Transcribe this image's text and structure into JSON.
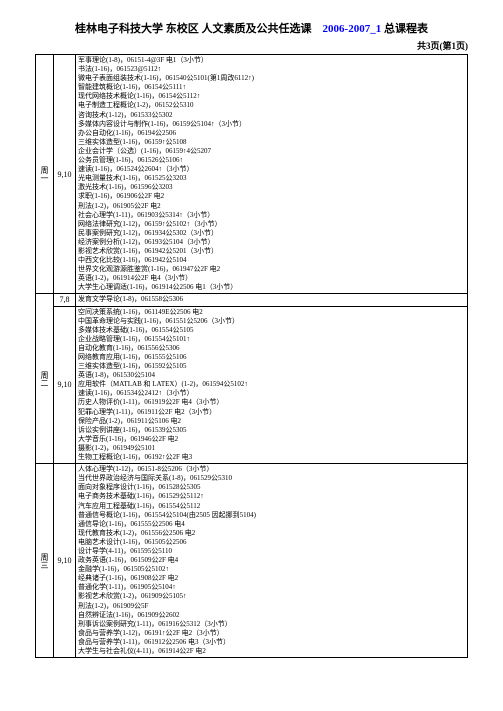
{
  "header": {
    "title_prefix": "桂林电子科技大学 东校区 人文素质及公共任选课　",
    "title_year": "2006-2007_1",
    "title_suffix": " 总课程表",
    "subtitle": "共3页(第1页)"
  },
  "colors": {
    "year_color": "#0000ff",
    "text_color": "#000000",
    "bg_color": "#ffffff"
  },
  "schedule": [
    {
      "day": "周一",
      "slots": [
        {
          "time": "9,10",
          "courses": [
            "军事理论(1-8)，06151-4@3F 电1（3小节）",
            "书法(1-16)，061523@5112↑",
            "微电子表面组装技术(1-16)，061540公5101(第1周改6112↑)",
            "智能建筑概论(1-16)，06154公5111↑",
            "现代网络技术概论(1-16)，06154公5112↑",
            "电子制造工程概论(1-2)，06152公5310",
            "咨询技术(1-12)，061533公5302",
            "多媒体内容设计与制作(1-16)，06159公5104↑（3小节）",
            "办公自动化(1-16)，06194公2506",
            "三维实体造型(1-16)，06159↑公5108",
            "企业会计学（公选）(1-16)，06159↑4公5207",
            "公务员管理(1-16)，061526公5106↑",
            "速读(1-16)，061524公2604↑（3小节）",
            "光电测量技术(1-16)，061525公3203",
            "激光技术(1-16)，061596公3203",
            "求职(1-16)，061906公2F 电2",
            "刑法(1-2)，061905公2F 电2",
            "社会心理学(1-11)，061903公5314↑（3小节）",
            "网络法律研究(1-12)，06159↑公5102↑（3小节）",
            "民事案例研究(1-12)，061934公5302（3小节）",
            "经济案例分析(1-12)，06193公5104（3小节）",
            "影视艺术欣赏(1-16)，061942公5201（3小节）",
            "中西文化比较(1-16)，061942公5104",
            "世界文化观游源胜鉴赏(1-16)，061947公2F 电2",
            "英语(1-2)，061914公2F 电4（3小节）",
            "大学生心理调适(1-16)，061914公2506 电1（3小节）"
          ]
        }
      ]
    },
    {
      "day": "周二",
      "slots": [
        {
          "time": "7,8",
          "courses": [
            "发育文学导论(1-8)，061558公5306"
          ]
        },
        {
          "time": "9,10",
          "courses": [
            "空间决策系统(1-16)，061149E公2506 电2",
            "中国革命理论与实践(1-16)，061551公5206（3小节）",
            "多媒体技术基础(1-16)，061554公5105",
            "企业战略管理(1-16)，061554公5101↑",
            "自动化教育(1-16)，061556公5306",
            "网络教育应用(1-16)，061555公5106",
            "三维实体造型(1-16)，061592公5105",
            "英语(1-8)，061530公5104",
            "应用软件（MATLAB 和 LATEX）(1-2)，061594公5102↑",
            "速读(1-16)，061534公2412↑（3小节）",
            "历史人物评价(1-11)，061919公2F 电4（3小节）",
            "犯罪心理学(1-11)，061911公2F 电2（3小节）",
            "保险产品(1-2)，061911公5106 电2",
            "诉讼实例讲座(1-16)，061539公5305",
            "大学音乐(1-16)，061946公2F 电2",
            "摄影(1-2)，061949公5101",
            "生物工程概论(1-16)，06192↑公2F 电3"
          ]
        }
      ]
    },
    {
      "day": "周三",
      "slots": [
        {
          "time": "9,10",
          "courses": [
            "人体心理学(1-12)，06151-8公5206（3小节）",
            "当代世界政治经济与国际关系(1-8)，061529公5310",
            "面向对象程序设计(1-16)，061528公5305",
            "电子商务技术基础(1-16)，061529公5112↑",
            "汽车应用工程基础(1-16)，061554公5112",
            "普通信号概论(1-16)，061554公5104(由2505 因起挪到5104)",
            "通信导论(1-16)，061555公2506 电4",
            "现代教育技术(1-2)，061556公2506 电2",
            "电脑艺术设计(1-16)，061505公2506",
            "设计导学(4-11)，061595公5110",
            "政务英语(1-16)，061509公2F 电4",
            "金融学(1-16)，061505公5102↑",
            "经典诸子(1-16)，061908公2F 电2",
            "普通化学(1-11)，061905公5104↑",
            "影视艺术欣赏(1-2)，061909公5105↑",
            "刑法(1-2)，061909公5F",
            "自然辨证法(1-16)，061909公2602",
            "刑事诉讼案例研究(1-11)，061916公5312（3小节）",
            "食品与营养学(1-12)，06191↑公2F 电2（3小节）",
            "食品与营养学(1-11)，061912公2506 电3（3小节）",
            "大学生与社会礼仪(4-11)，061914公2F 电2"
          ]
        }
      ]
    }
  ]
}
